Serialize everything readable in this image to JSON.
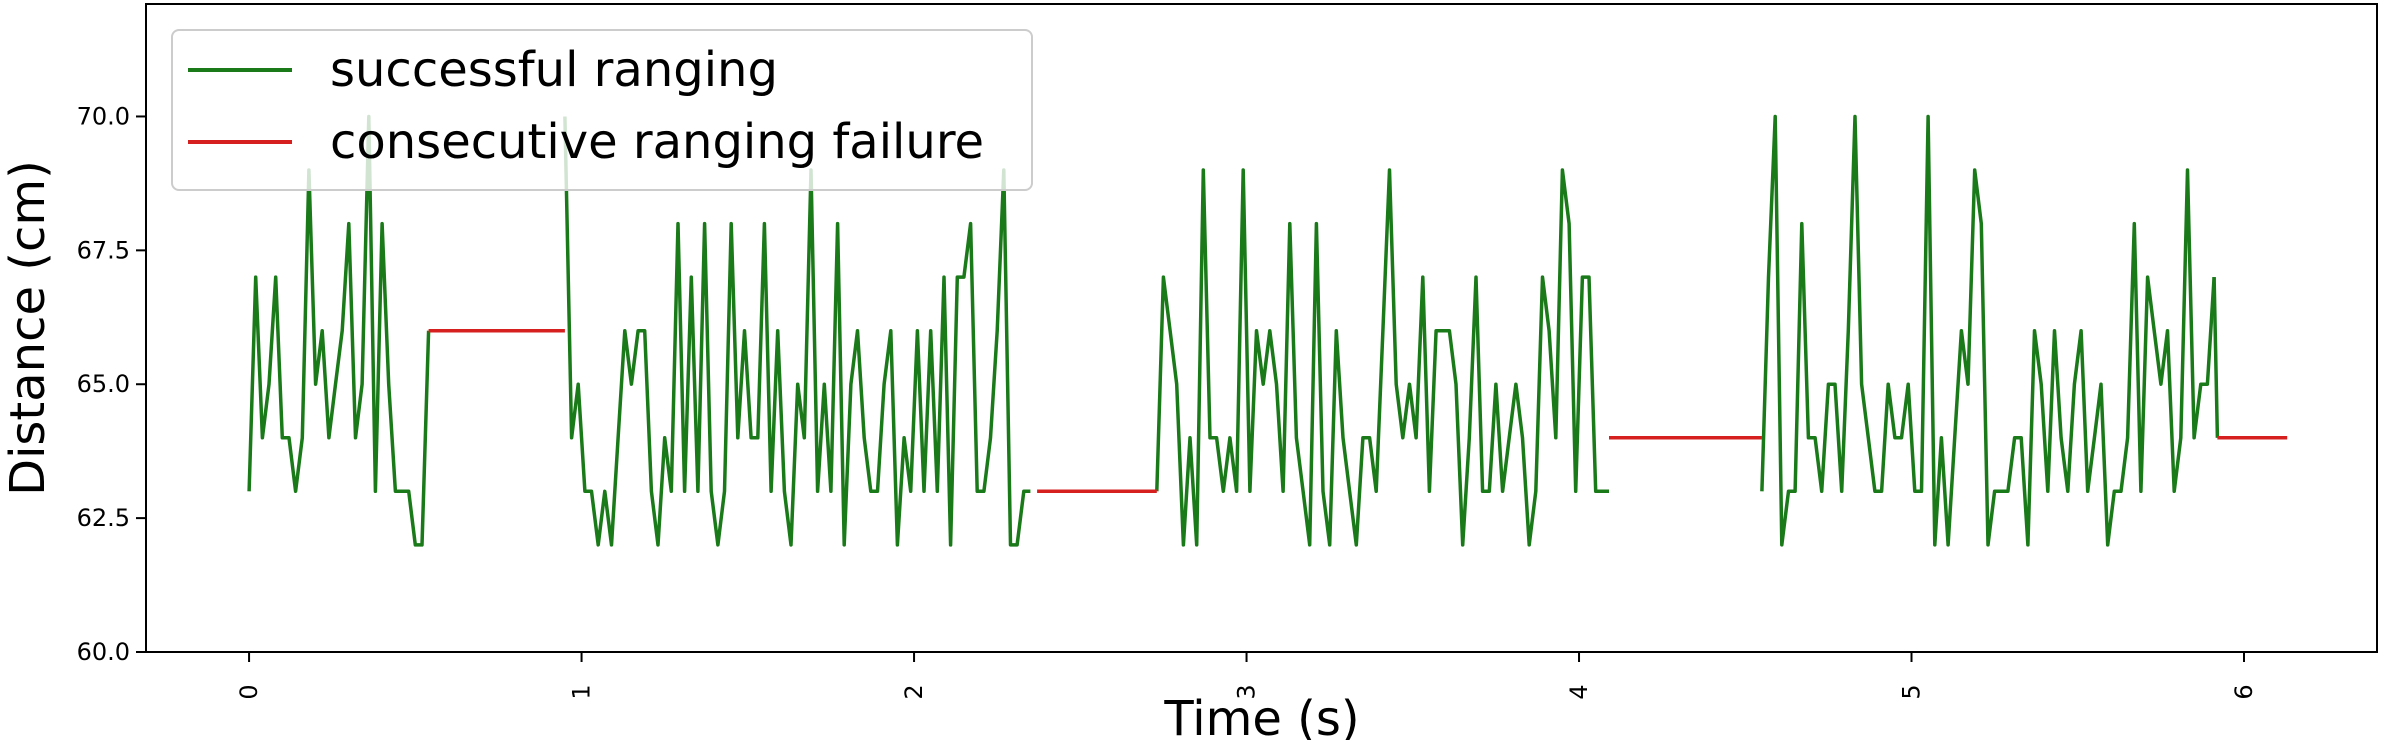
{
  "chart_data": {
    "type": "line",
    "title": "",
    "xlabel": "Time (s)",
    "ylabel": "Distance (cm)",
    "xlim": [
      -0.31,
      6.4
    ],
    "ylim": [
      60.0,
      72.1
    ],
    "x_ticks": [
      0,
      1,
      2,
      3,
      4,
      5,
      6
    ],
    "x_tick_labels": [
      "0",
      "1",
      "2",
      "3",
      "4",
      "5",
      "6"
    ],
    "y_ticks": [
      60.0,
      62.5,
      65.0,
      67.5,
      70.0
    ],
    "y_tick_labels": [
      "60.0",
      "62.5",
      "65.0",
      "67.5",
      "70.0"
    ],
    "grid": false,
    "legend_position": "top-left",
    "series": [
      {
        "name": "successful ranging",
        "color": "#1a7a1a",
        "segments": [
          {
            "x": [
              0.0,
              0.02,
              0.04,
              0.06,
              0.08,
              0.1,
              0.12,
              0.14,
              0.16,
              0.18,
              0.2,
              0.22,
              0.24,
              0.26,
              0.28,
              0.3,
              0.32,
              0.34,
              0.36,
              0.38,
              0.4,
              0.42,
              0.44,
              0.46,
              0.48,
              0.5,
              0.52,
              0.54
            ],
            "y": [
              63,
              67,
              64,
              65,
              67,
              64,
              64,
              63,
              64,
              69,
              65,
              66,
              64,
              65,
              66,
              68,
              64,
              65,
              70,
              63,
              68,
              65,
              63,
              63,
              63,
              62,
              62,
              66
            ]
          },
          {
            "x": [
              0.95,
              0.97,
              0.99,
              1.01,
              1.03,
              1.05,
              1.07,
              1.09,
              1.11,
              1.13,
              1.15,
              1.17,
              1.19,
              1.21,
              1.23,
              1.25,
              1.27,
              1.29,
              1.31,
              1.33,
              1.35,
              1.37,
              1.39,
              1.41,
              1.43,
              1.45,
              1.47,
              1.49,
              1.51,
              1.53,
              1.55,
              1.57,
              1.59,
              1.61,
              1.63,
              1.65,
              1.67,
              1.69,
              1.71,
              1.73,
              1.75,
              1.77,
              1.79,
              1.81,
              1.83,
              1.85,
              1.87,
              1.89,
              1.91,
              1.93,
              1.95,
              1.97,
              1.99,
              2.01,
              2.03,
              2.05,
              2.07,
              2.09,
              2.11,
              2.13,
              2.15,
              2.17,
              2.19,
              2.21,
              2.23,
              2.25,
              2.27,
              2.29,
              2.31,
              2.33,
              2.35
            ],
            "y": [
              70,
              64,
              65,
              63,
              63,
              62,
              63,
              62,
              64,
              66,
              65,
              66,
              66,
              63,
              62,
              64,
              63,
              68,
              63,
              67,
              63,
              68,
              63,
              62,
              63,
              68,
              64,
              66,
              64,
              64,
              68,
              63,
              66,
              63,
              62,
              65,
              64,
              69,
              63,
              65,
              63,
              68,
              62,
              65,
              66,
              64,
              63,
              63,
              65,
              66,
              62,
              64,
              63,
              66,
              63,
              66,
              63,
              67,
              62,
              67,
              67,
              68,
              63,
              63,
              64,
              66,
              69,
              62,
              62,
              63,
              63
            ]
          },
          {
            "x": [
              2.73,
              2.75,
              2.77,
              2.79,
              2.81,
              2.83,
              2.85,
              2.87,
              2.89,
              2.91,
              2.93,
              2.95,
              2.97,
              2.99,
              3.01,
              3.03,
              3.05,
              3.07,
              3.09,
              3.11,
              3.13,
              3.15,
              3.17,
              3.19,
              3.21,
              3.23,
              3.25,
              3.27,
              3.29,
              3.31,
              3.33,
              3.35,
              3.37,
              3.39,
              3.41,
              3.43,
              3.45,
              3.47,
              3.49,
              3.51,
              3.53,
              3.55,
              3.57,
              3.59,
              3.61,
              3.63,
              3.65,
              3.67,
              3.69,
              3.71,
              3.73,
              3.75,
              3.77,
              3.79,
              3.81,
              3.83,
              3.85,
              3.87,
              3.89,
              3.91,
              3.93,
              3.95,
              3.97,
              3.99,
              4.01,
              4.03,
              4.05,
              4.07,
              4.09
            ],
            "y": [
              63,
              67,
              66,
              65,
              62,
              64,
              62,
              69,
              64,
              64,
              63,
              64,
              63,
              69,
              63,
              66,
              65,
              66,
              65,
              63,
              68,
              64,
              63,
              62,
              68,
              63,
              62,
              66,
              64,
              63,
              62,
              64,
              64,
              63,
              66,
              69,
              65,
              64,
              65,
              64,
              67,
              63,
              66,
              66,
              66,
              65,
              62,
              64,
              67,
              63,
              63,
              65,
              63,
              64,
              65,
              64,
              62,
              63,
              67,
              66,
              64,
              69,
              68,
              63,
              67,
              67,
              63,
              63,
              63
            ]
          },
          {
            "x": [
              4.55,
              4.57,
              4.59,
              4.61,
              4.63,
              4.65,
              4.67,
              4.69,
              4.71,
              4.73,
              4.75,
              4.77,
              4.79,
              4.81,
              4.83,
              4.85,
              4.87,
              4.89,
              4.91,
              4.93,
              4.95,
              4.97,
              4.99,
              5.01,
              5.03,
              5.05,
              5.07,
              5.09,
              5.11,
              5.13,
              5.15,
              5.17,
              5.19,
              5.21,
              5.23,
              5.25,
              5.27,
              5.29,
              5.31,
              5.33,
              5.35,
              5.37,
              5.39,
              5.41,
              5.43,
              5.45,
              5.47,
              5.49,
              5.51,
              5.53,
              5.55,
              5.57,
              5.59,
              5.61,
              5.63,
              5.65,
              5.67,
              5.69,
              5.71,
              5.73,
              5.75,
              5.77,
              5.79,
              5.81,
              5.83,
              5.85,
              5.87,
              5.89,
              5.91
            ],
            "y": [
              63,
              67,
              70,
              62,
              63,
              63,
              68,
              64,
              64,
              63,
              65,
              65,
              63,
              66,
              70,
              65,
              64,
              63,
              63,
              65,
              64,
              64,
              65,
              63,
              63,
              70,
              62,
              64,
              62,
              64,
              66,
              65,
              69,
              68,
              62,
              63,
              63,
              63,
              64,
              64,
              62,
              66,
              65,
              63,
              66,
              64,
              63,
              65,
              66,
              63,
              64,
              65,
              62,
              63,
              63,
              64,
              68,
              63,
              67,
              66,
              65,
              66,
              63,
              64,
              69,
              64,
              65,
              65,
              67
            ]
          },
          {
            "x": [
              5.91,
              5.92
            ],
            "y": [
              67,
              64
            ]
          }
        ]
      },
      {
        "name": "consecutive ranging failure",
        "color": "#d62020",
        "segments": [
          {
            "x": [
              0.54,
              0.95
            ],
            "y": [
              66,
              66
            ]
          },
          {
            "x": [
              2.37,
              2.73
            ],
            "y": [
              63,
              63
            ]
          },
          {
            "x": [
              4.09,
              4.55
            ],
            "y": [
              64,
              64
            ]
          },
          {
            "x": [
              5.92,
              6.13
            ],
            "y": [
              64,
              64
            ]
          }
        ]
      }
    ]
  }
}
